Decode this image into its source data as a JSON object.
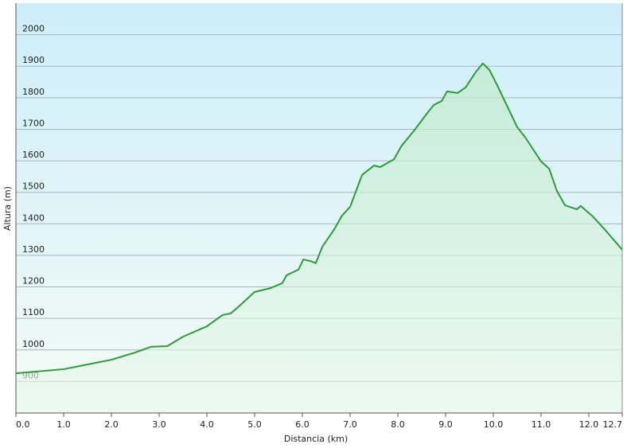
{
  "chart_data": {
    "type": "area",
    "x_label": "Distancia  (km)",
    "y_label": "Altura (m)",
    "x": [
      0,
      1.0,
      2.0,
      2.5,
      2.83,
      3.17,
      3.5,
      4.0,
      4.33,
      4.5,
      4.67,
      5.0,
      5.33,
      5.58,
      5.67,
      5.92,
      6.02,
      6.17,
      6.28,
      6.42,
      6.67,
      6.83,
      7.0,
      7.25,
      7.5,
      7.63,
      7.92,
      8.08,
      8.33,
      8.58,
      8.75,
      8.92,
      9.03,
      9.25,
      9.42,
      9.63,
      9.78,
      9.92,
      10.08,
      10.5,
      10.67,
      11.0,
      11.17,
      11.33,
      11.5,
      11.75,
      11.83,
      12.08,
      12.33,
      12.5,
      12.7
    ],
    "values": [
      926,
      939,
      969,
      992,
      1010,
      1012,
      1042,
      1075,
      1111,
      1116,
      1138,
      1184,
      1196,
      1212,
      1237,
      1255,
      1287,
      1282,
      1275,
      1328,
      1383,
      1426,
      1454,
      1555,
      1585,
      1580,
      1605,
      1648,
      1694,
      1744,
      1777,
      1790,
      1820,
      1815,
      1833,
      1881,
      1909,
      1888,
      1840,
      1707,
      1674,
      1598,
      1575,
      1505,
      1459,
      1446,
      1457,
      1424,
      1383,
      1353,
      1318
    ],
    "color": "#2e9a3a",
    "xlim": [
      0,
      12.7
    ],
    "xticks": [
      {
        "value": 0,
        "label": "0.0"
      },
      {
        "value": 1,
        "label": "1.0"
      },
      {
        "value": 2,
        "label": "2.0"
      },
      {
        "value": 3,
        "label": "3.0"
      },
      {
        "value": 4,
        "label": "4.0"
      },
      {
        "value": 5,
        "label": "5.0"
      },
      {
        "value": 6,
        "label": "6.0"
      },
      {
        "value": 7,
        "label": "7.0"
      },
      {
        "value": 8,
        "label": "8.0"
      },
      {
        "value": 9,
        "label": "9.0"
      },
      {
        "value": 10,
        "label": "10.0"
      },
      {
        "value": 11,
        "label": "11.0"
      },
      {
        "value": 12,
        "label": "12.0"
      },
      12.7
    ],
    "ylim": [
      800,
      2100
    ],
    "yticks": [
      900,
      1000,
      1100,
      1200,
      1300,
      1400,
      1500,
      1600,
      1700,
      1800,
      1900,
      2000
    ],
    "grid": true
  }
}
